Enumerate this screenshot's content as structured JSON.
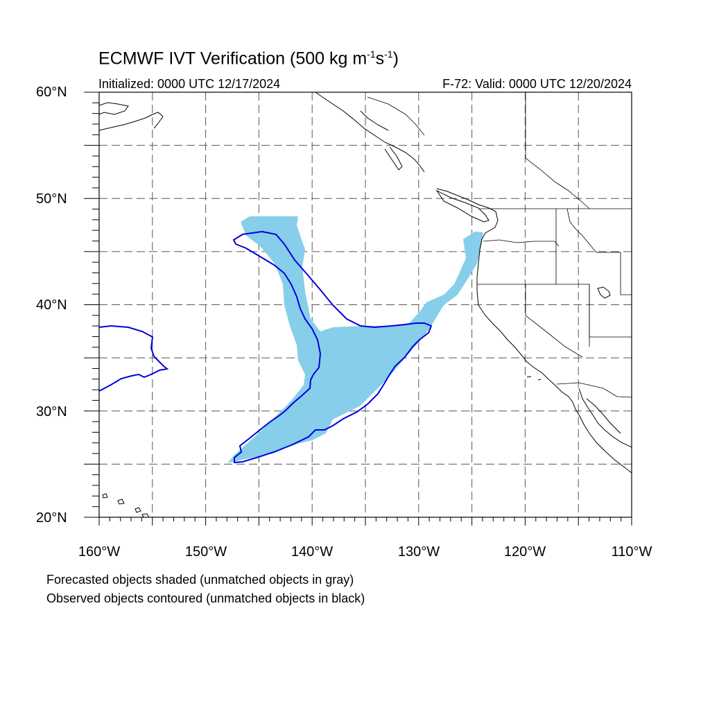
{
  "title": {
    "main": "ECMWF IVT Verification (500 kg m",
    "sup1": "-1",
    "mid": "s",
    "sup2": "-1",
    "end": ")"
  },
  "initialized": "Initialized: 0000 UTC 12/17/2024",
  "valid": "F-72: Valid: 0000 UTC 12/20/2024",
  "lat_labels": [
    "60°N",
    "50°N",
    "40°N",
    "30°N",
    "20°N"
  ],
  "lon_labels": [
    "160°W",
    "150°W",
    "140°W",
    "130°W",
    "120°W",
    "110°W"
  ],
  "footnotes": {
    "forecast": "Forecasted objects shaded (unmatched objects in gray)",
    "observed": "Observed objects contoured (unmatched objects in black)"
  },
  "map": {
    "extent": {
      "lon_min": -160,
      "lon_max": -110,
      "lat_min": 20,
      "lat_max": 60
    },
    "grid_interval_deg": 5,
    "colors": {
      "forecast_fill": "#87ceeb",
      "observed_contour": "#0000dd",
      "coast": "#000000",
      "grid": "#555555"
    },
    "objects": {
      "forecast_shaded": "matched forecast IVT object",
      "observed_contours": [
        "matched observed IVT object",
        "second matched observed IVT object"
      ]
    }
  }
}
